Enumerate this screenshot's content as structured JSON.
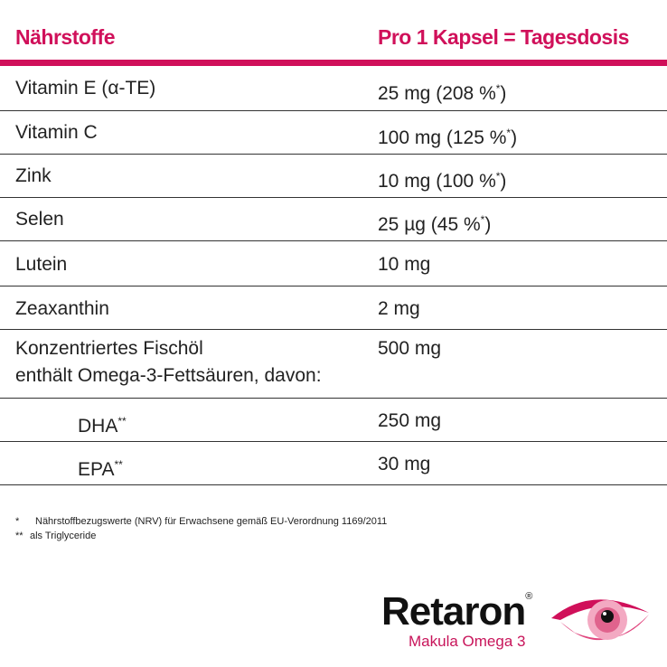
{
  "header": {
    "col1": "Nährstoffe",
    "col2": "Pro 1 Kapsel = Tagesdosis"
  },
  "rows": [
    {
      "name": "Vitamin E (α-TE)",
      "value": "25 mg (208 %",
      "mark": "*",
      "close": ")"
    },
    {
      "name": "Vitamin C",
      "value": "100 mg (125 %",
      "mark": "*",
      "close": ")"
    },
    {
      "name": "Zink",
      "value": "10 mg (100 %",
      "mark": "*",
      "close": ")"
    },
    {
      "name": "Selen",
      "value": "25 µg (45 %",
      "mark": "*",
      "close": ")"
    },
    {
      "name": "Lutein",
      "value": "10 mg"
    },
    {
      "name": "Zeaxanthin",
      "value": "2 mg"
    },
    {
      "name": "Konzentriertes Fischöl",
      "name2": "enthält Omega-3-Fettsäuren, davon:",
      "value": "500 mg"
    },
    {
      "name": "DHA",
      "mark": "**",
      "value": "250 mg"
    },
    {
      "name": "EPA",
      "mark": "**",
      "value": "30 mg"
    }
  ],
  "footnotes": [
    {
      "mark": "*",
      "text": "Nährstoffbezugswerte (NRV) für Erwachsene gemäß EU-Verordnung 1169/2011"
    },
    {
      "mark": "**",
      "text": "als Triglyceride"
    }
  ],
  "logo": {
    "brand": "Retaron",
    "registered": "®",
    "subtitle": "Makula Omega 3"
  },
  "colors": {
    "accent": "#d0105a"
  }
}
